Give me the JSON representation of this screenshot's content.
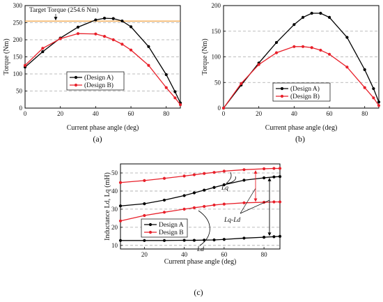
{
  "colors": {
    "design_a": "#000000",
    "design_b": "#e8202a",
    "target": "#f0a040"
  },
  "chart_data": [
    {
      "type": "line",
      "panel": "(a)",
      "xlabel": "Current phase angle (deg)",
      "ylabel": "Torque (Nm)",
      "xlim": [
        0,
        88
      ],
      "ylim": [
        0,
        300
      ],
      "xticks": [
        "0",
        "20",
        "40",
        "60",
        "80"
      ],
      "yticks": [
        "0",
        "50",
        "100",
        "150",
        "200",
        "250",
        "300"
      ],
      "grid": "horizontal dashed",
      "legend_position": "center",
      "reference_line": {
        "label": "Target Torque (254.6 Nm)",
        "value": 254.6
      },
      "series": [
        {
          "name": "(Design A)",
          "x": [
            0,
            10,
            20,
            30,
            40,
            45,
            50,
            55,
            60,
            70,
            80,
            85,
            88
          ],
          "y": [
            120,
            165,
            205,
            237,
            258,
            263,
            262,
            255,
            238,
            180,
            98,
            48,
            15
          ]
        },
        {
          "name": "(Design B)",
          "x": [
            0,
            10,
            20,
            30,
            40,
            45,
            50,
            55,
            60,
            70,
            80,
            85,
            88
          ],
          "y": [
            125,
            175,
            203,
            218,
            217,
            210,
            200,
            187,
            170,
            125,
            60,
            30,
            10
          ]
        }
      ]
    },
    {
      "type": "line",
      "panel": "(b)",
      "xlabel": "Current phase angle (deg)",
      "ylabel": "Torque (Nm)",
      "xlim": [
        0,
        88
      ],
      "ylim": [
        0,
        200
      ],
      "xticks": [
        "0",
        "20",
        "40",
        "60",
        "80"
      ],
      "yticks": [
        "0",
        "50",
        "100",
        "150",
        "200"
      ],
      "grid": "horizontal dashed",
      "legend_position": "bottom-center",
      "series": [
        {
          "name": "(Design A)",
          "x": [
            0,
            10,
            20,
            30,
            40,
            45,
            50,
            55,
            60,
            70,
            80,
            85,
            88
          ],
          "y": [
            0,
            45,
            88,
            128,
            163,
            177,
            185,
            185,
            177,
            138,
            75,
            38,
            12
          ]
        },
        {
          "name": "(Design B)",
          "x": [
            0,
            10,
            20,
            30,
            40,
            45,
            50,
            55,
            60,
            70,
            80,
            85,
            88
          ],
          "y": [
            0,
            48,
            85,
            108,
            120,
            120,
            118,
            113,
            105,
            80,
            40,
            20,
            5
          ]
        }
      ]
    },
    {
      "type": "line",
      "panel": "(c)",
      "xlabel": "Current phase angle (deg)",
      "ylabel": "Inductance Ld, Lq (mH)",
      "xlim": [
        8,
        88
      ],
      "ylim": [
        8,
        55
      ],
      "xticks": [
        "20",
        "40",
        "60",
        "80"
      ],
      "yticks": [
        "10",
        "20",
        "30",
        "40",
        "50"
      ],
      "grid": "horizontal dashed",
      "legend_position": "center-left",
      "annotations": [
        "Lq",
        "Lq-Ld",
        "Ld"
      ],
      "series": [
        {
          "name": "Design A",
          "curve": "Lq",
          "x": [
            8,
            20,
            30,
            40,
            45,
            50,
            55,
            60,
            70,
            80,
            85,
            88
          ],
          "y": [
            31.8,
            33,
            35,
            37.5,
            39,
            40.5,
            42,
            43.5,
            46,
            47.3,
            47.8,
            48
          ]
        },
        {
          "name": "Design B",
          "curve": "Lq",
          "x": [
            8,
            20,
            30,
            40,
            45,
            50,
            55,
            60,
            70,
            80,
            85,
            88
          ],
          "y": [
            44.7,
            45.8,
            47,
            48.3,
            49,
            49.7,
            50.3,
            51,
            51.8,
            52.3,
            52.5,
            52.5
          ]
        },
        {
          "name": "Design A",
          "curve": "Ld",
          "x": [
            8,
            20,
            30,
            40,
            45,
            50,
            55,
            60,
            70,
            80,
            85,
            88
          ],
          "y": [
            12.7,
            12.7,
            12.7,
            12.8,
            12.8,
            12.9,
            13,
            13.3,
            14,
            14.5,
            14.8,
            15
          ]
        },
        {
          "name": "Design B",
          "curve": "Ld",
          "x": [
            8,
            20,
            30,
            40,
            45,
            50,
            55,
            60,
            70,
            80,
            85,
            88
          ],
          "y": [
            23.5,
            26.5,
            28.3,
            30,
            30.8,
            31.5,
            32.3,
            32.8,
            33.5,
            33.8,
            34,
            34
          ]
        }
      ]
    }
  ]
}
